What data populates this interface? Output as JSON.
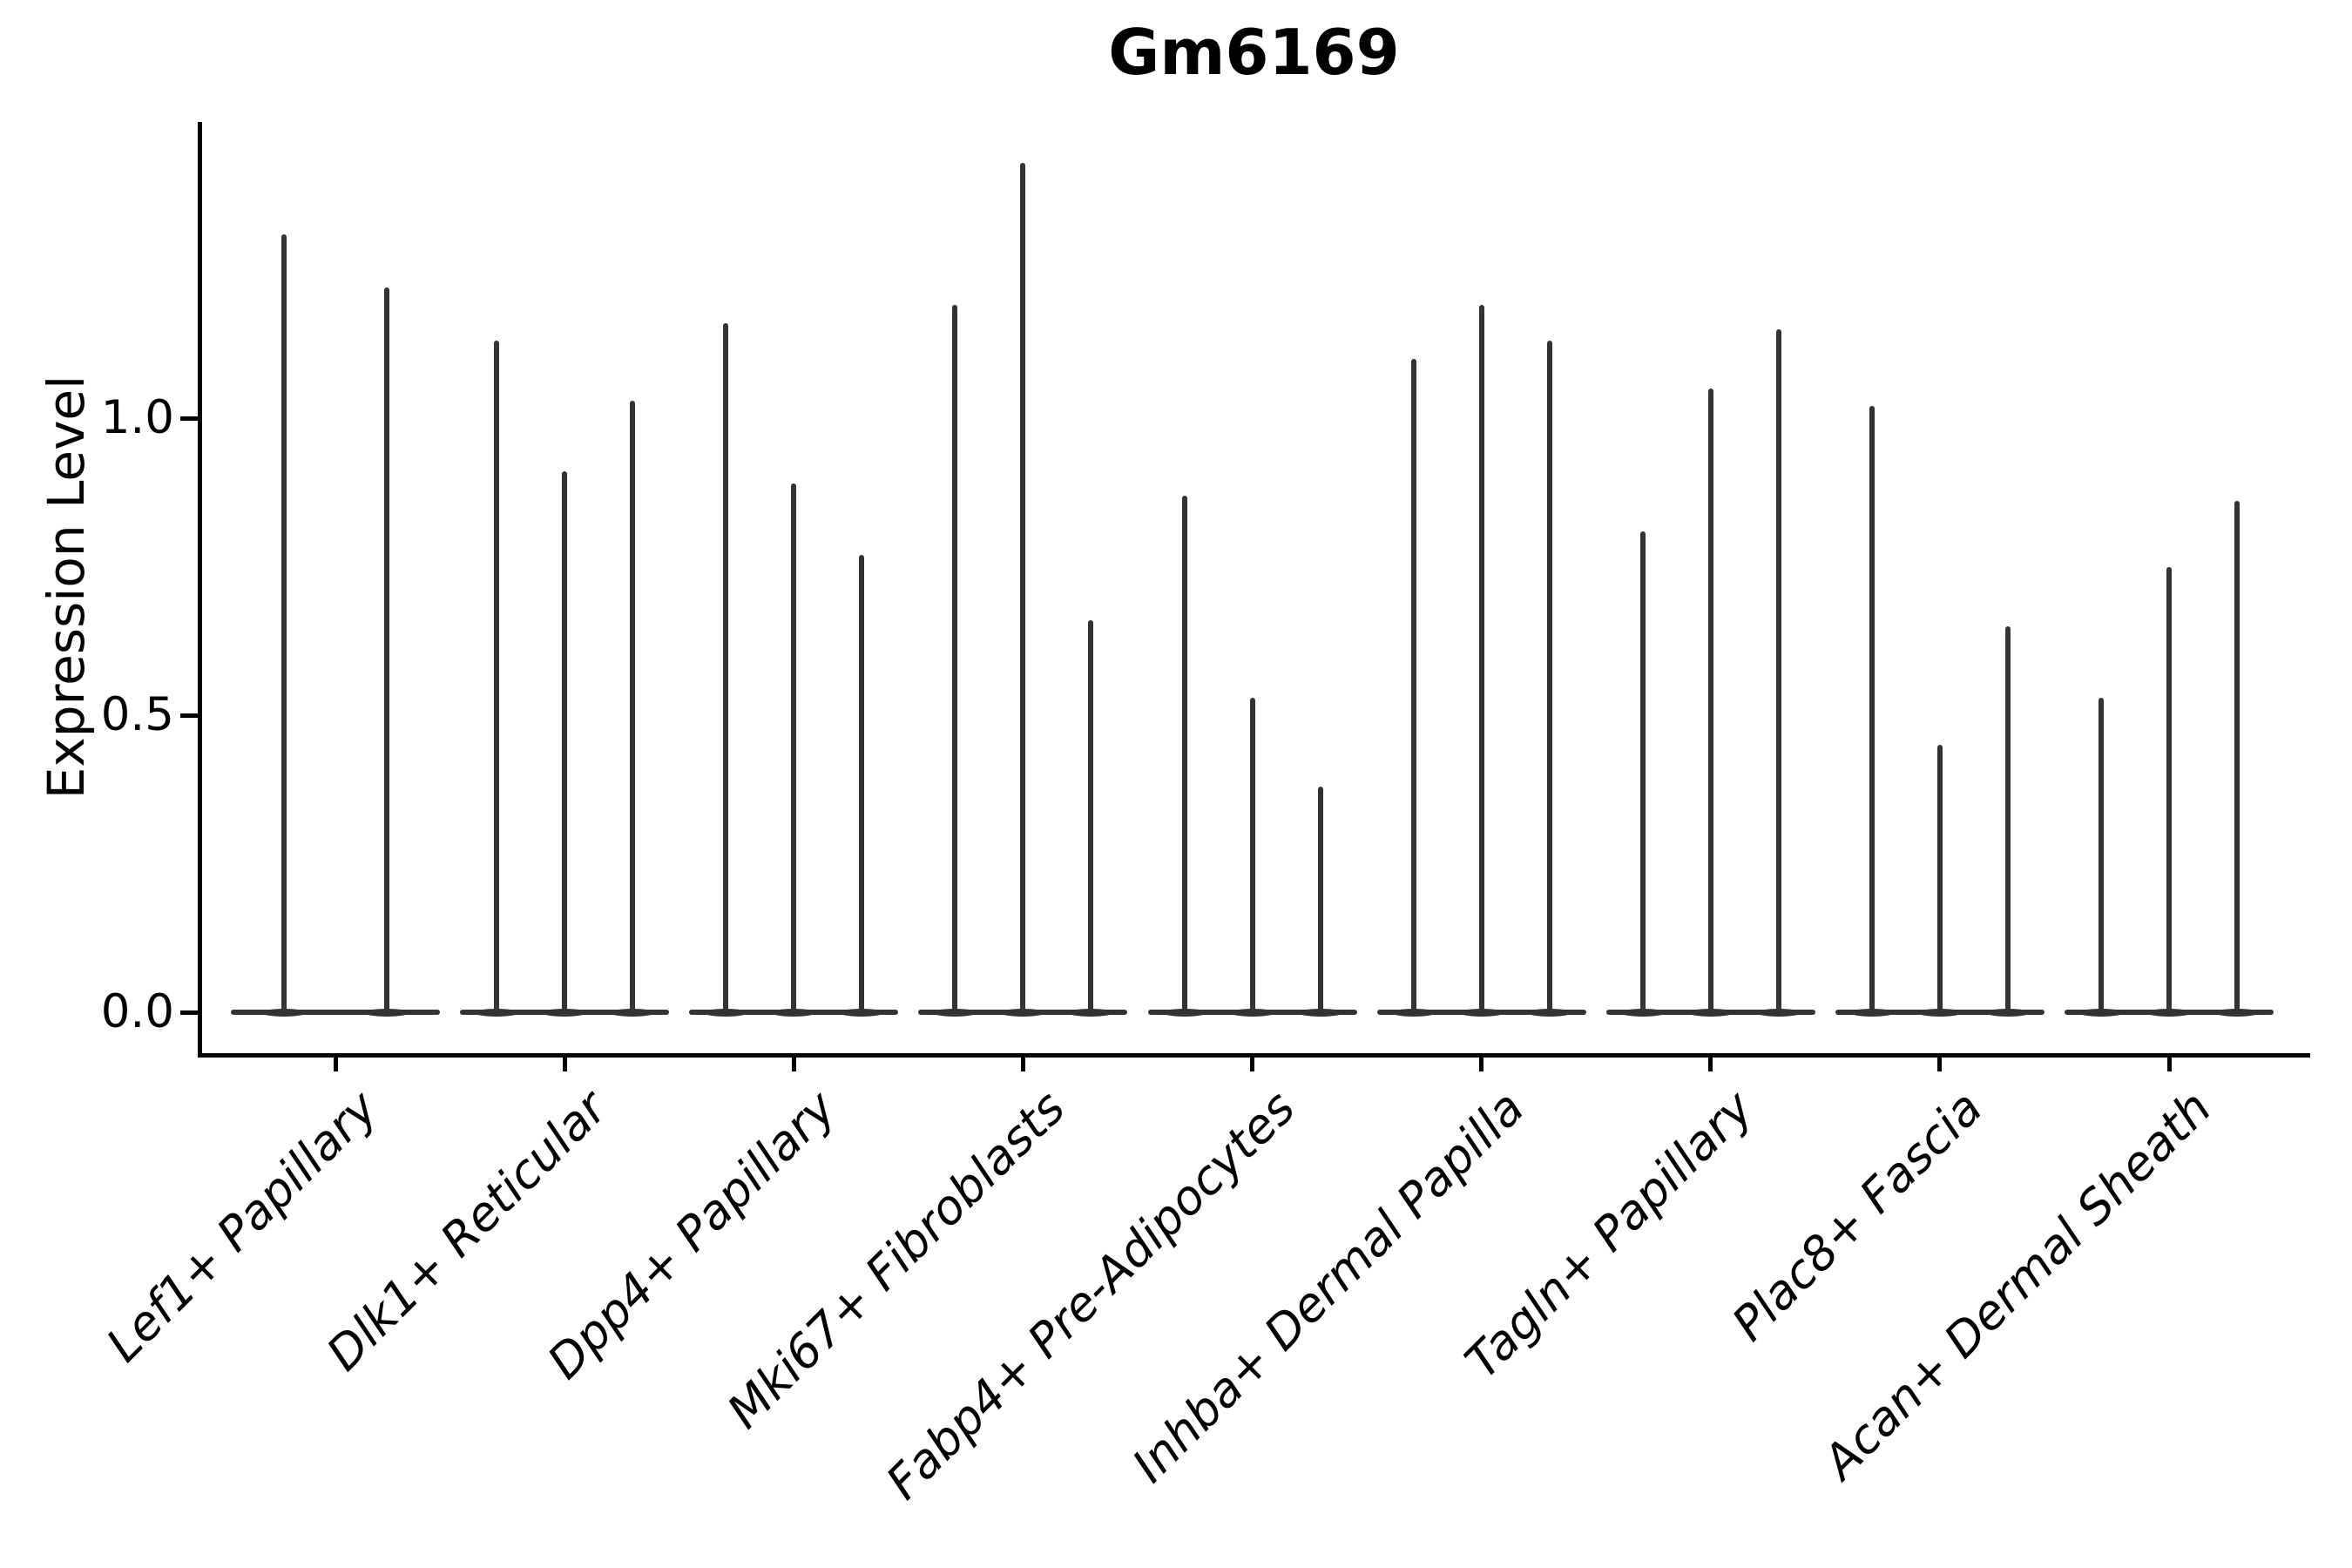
{
  "title": "Gm6169",
  "axes": {
    "ylabel": "Expression Level",
    "ytick_labels": [
      "0.0",
      "0.5",
      "1.0"
    ]
  },
  "style": {
    "background": "#ffffff",
    "violin_color": "#333333",
    "axis_color": "#000000",
    "text_color": "#000000"
  },
  "chart_data": {
    "type": "violin",
    "title": "Gm6169",
    "xlabel": "",
    "ylabel": "Expression Level",
    "ylim": [
      0,
      1.5
    ],
    "yticks": [
      0.0,
      0.5,
      1.0
    ],
    "grid": false,
    "legend": null,
    "x_tick_rotation": 45,
    "description": "Very thin violin plot spikes; distributions concentrated at 0 with narrow tails up to the peak value. Category 1 has 2 violins, all others have 3.",
    "categories": [
      "Lef1+ Papillary",
      "Dlk1+ Reticular",
      "Dpp4+ Papillary",
      "Mki67+ Fibroblasts",
      "Fabp4+ Pre-Adipocytes",
      "Inhba+ Dermal Papilla",
      "Tagln+ Papillary",
      "Plac8+ Fascia",
      "Acan+ Dermal Sheath"
    ],
    "series": [
      {
        "category": "Lef1+ Papillary",
        "violin_peaks": [
          1.31,
          1.22
        ]
      },
      {
        "category": "Dlk1+ Reticular",
        "violin_peaks": [
          1.13,
          0.91,
          1.03
        ]
      },
      {
        "category": "Dpp4+ Papillary",
        "violin_peaks": [
          1.16,
          0.89,
          0.77
        ]
      },
      {
        "category": "Mki67+ Fibroblasts",
        "violin_peaks": [
          1.19,
          1.43,
          0.66
        ]
      },
      {
        "category": "Fabp4+ Pre-Adipocytes",
        "violin_peaks": [
          0.87,
          0.53,
          0.38
        ]
      },
      {
        "category": "Inhba+ Dermal Papilla",
        "violin_peaks": [
          1.1,
          1.19,
          1.13
        ]
      },
      {
        "category": "Tagln+ Papillary",
        "violin_peaks": [
          0.81,
          1.05,
          1.15
        ]
      },
      {
        "category": "Plac8+ Fascia",
        "violin_peaks": [
          1.02,
          0.45,
          0.65
        ]
      },
      {
        "category": "Acan+ Dermal Sheath",
        "violin_peaks": [
          0.53,
          0.75,
          0.86
        ]
      }
    ]
  }
}
